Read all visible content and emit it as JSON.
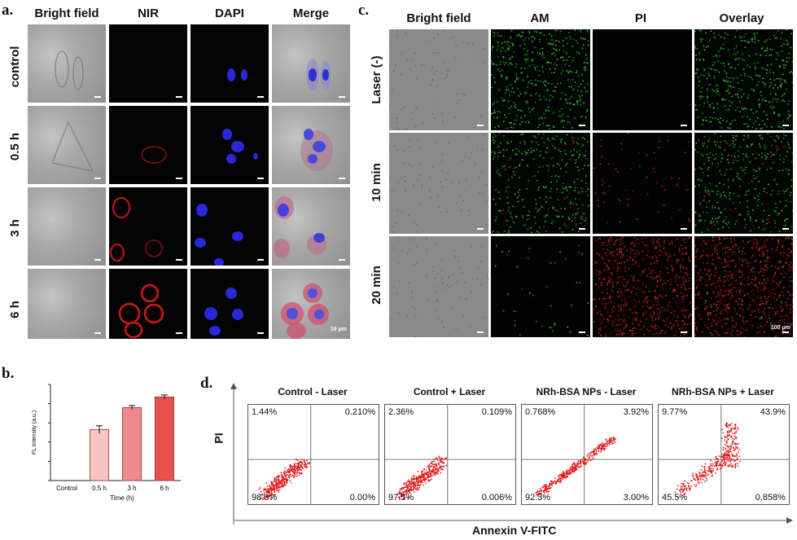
{
  "panel_a": {
    "label": "a.",
    "columns": [
      "Bright field",
      "NIR",
      "DAPI",
      "Merge"
    ],
    "rows": [
      "control",
      "0.5 h",
      "3 h",
      "6 h"
    ],
    "scale_bar": "10 μm"
  },
  "panel_c": {
    "label": "c.",
    "columns": [
      "Bright field",
      "AM",
      "PI",
      "Overlay"
    ],
    "rows": [
      "Laser (-)",
      "10 min",
      "20 min"
    ],
    "scale_bar": "100 μm"
  },
  "panel_b": {
    "label": "b.",
    "chart_data": {
      "type": "bar",
      "categories": [
        "Control",
        "0.5 h",
        "3 h",
        "6 h"
      ],
      "values": [
        0,
        53,
        76,
        87
      ],
      "errors": [
        0,
        4,
        2,
        2
      ],
      "xlabel": "Time (h)",
      "ylabel": "FL Intensity (a.u.)",
      "colors": [
        "#ffffff",
        "#f6c4c4",
        "#ef8a8a",
        "#e85050"
      ]
    }
  },
  "panel_d": {
    "label": "d.",
    "y_axis_label": "PI",
    "x_axis_label": "Annexin V-FITC",
    "plots": [
      {
        "title": "Control - Laser",
        "ul": "1.44%",
        "ur": "0.210%",
        "ll": "98.3%",
        "lr": "0.00%"
      },
      {
        "title": "Control + Laser",
        "ul": "2.36%",
        "ur": "0.109%",
        "ll": "97.5%",
        "lr": "0.006%"
      },
      {
        "title": "NRh-BSA NPs - Laser",
        "ul": "0.768%",
        "ur": "3.92%",
        "ll": "92.3%",
        "lr": "3.00%"
      },
      {
        "title": "NRh-BSA NPs + Laser",
        "ul": "9.77%",
        "ur": "43.9%",
        "ll": "45.5%",
        "lr": "0.858%"
      }
    ]
  }
}
